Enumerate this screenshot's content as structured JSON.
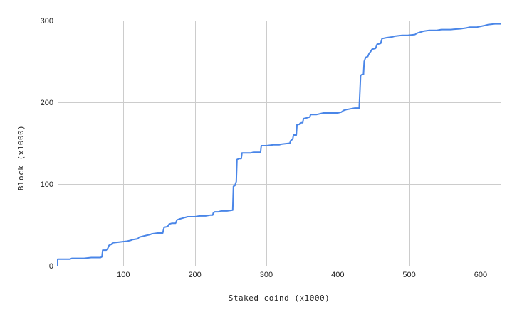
{
  "chart_data": {
    "type": "line",
    "title": "",
    "xlabel": "Staked coind (x1000)",
    "ylabel": "Block (x1000)",
    "xlim": [
      8,
      628
    ],
    "ylim": [
      0,
      300
    ],
    "x_ticks": [
      100,
      200,
      300,
      400,
      500,
      600
    ],
    "x_tick_labels": [
      "100",
      "200",
      "300",
      "400",
      "500",
      "600"
    ],
    "y_ticks": [
      0,
      100,
      200,
      300
    ],
    "y_tick_labels": [
      "0",
      "100",
      "200",
      "300"
    ],
    "grid": true,
    "line_color": "#4a86e8",
    "series": [
      {
        "values": [
          [
            8,
            0
          ],
          [
            8,
            8
          ],
          [
            25,
            8
          ],
          [
            28,
            9
          ],
          [
            45,
            9
          ],
          [
            55,
            10
          ],
          [
            68,
            10
          ],
          [
            70,
            11
          ],
          [
            71,
            19
          ],
          [
            76,
            19
          ],
          [
            78,
            21
          ],
          [
            80,
            25
          ],
          [
            83,
            26
          ],
          [
            85,
            28
          ],
          [
            95,
            29
          ],
          [
            105,
            30
          ],
          [
            110,
            31
          ],
          [
            113,
            32
          ],
          [
            120,
            33
          ],
          [
            122,
            35
          ],
          [
            127,
            36
          ],
          [
            132,
            37
          ],
          [
            137,
            38
          ],
          [
            140,
            39
          ],
          [
            148,
            40
          ],
          [
            155,
            40
          ],
          [
            157,
            47
          ],
          [
            162,
            48
          ],
          [
            164,
            51
          ],
          [
            168,
            52
          ],
          [
            173,
            52
          ],
          [
            175,
            56
          ],
          [
            178,
            57
          ],
          [
            182,
            58
          ],
          [
            186,
            59
          ],
          [
            190,
            60
          ],
          [
            200,
            60
          ],
          [
            207,
            61
          ],
          [
            215,
            61
          ],
          [
            222,
            62
          ],
          [
            225,
            62
          ],
          [
            226,
            65
          ],
          [
            228,
            66
          ],
          [
            233,
            66
          ],
          [
            237,
            67
          ],
          [
            245,
            67
          ],
          [
            253,
            68
          ],
          [
            254,
            97
          ],
          [
            256,
            98
          ],
          [
            258,
            103
          ],
          [
            259,
            130
          ],
          [
            262,
            131
          ],
          [
            265,
            131
          ],
          [
            266,
            138
          ],
          [
            278,
            138
          ],
          [
            282,
            139
          ],
          [
            292,
            139
          ],
          [
            293,
            147
          ],
          [
            300,
            147
          ],
          [
            310,
            148
          ],
          [
            318,
            148
          ],
          [
            322,
            149
          ],
          [
            333,
            150
          ],
          [
            334,
            153
          ],
          [
            337,
            155
          ],
          [
            338,
            160
          ],
          [
            342,
            160
          ],
          [
            343,
            173
          ],
          [
            346,
            173
          ],
          [
            348,
            175
          ],
          [
            351,
            175
          ],
          [
            352,
            180
          ],
          [
            357,
            181
          ],
          [
            361,
            182
          ],
          [
            362,
            185
          ],
          [
            370,
            185
          ],
          [
            380,
            187
          ],
          [
            400,
            187
          ],
          [
            405,
            188
          ],
          [
            408,
            190
          ],
          [
            412,
            191
          ],
          [
            418,
            192
          ],
          [
            424,
            193
          ],
          [
            430,
            193
          ],
          [
            432,
            233
          ],
          [
            434,
            234
          ],
          [
            436,
            234
          ],
          [
            437,
            250
          ],
          [
            439,
            255
          ],
          [
            442,
            256
          ],
          [
            444,
            260
          ],
          [
            446,
            262
          ],
          [
            448,
            265
          ],
          [
            453,
            266
          ],
          [
            455,
            271
          ],
          [
            460,
            272
          ],
          [
            462,
            278
          ],
          [
            468,
            279
          ],
          [
            476,
            280
          ],
          [
            480,
            281
          ],
          [
            490,
            282
          ],
          [
            498,
            282
          ],
          [
            508,
            283
          ],
          [
            512,
            285
          ],
          [
            520,
            287
          ],
          [
            528,
            288
          ],
          [
            538,
            288
          ],
          [
            545,
            289
          ],
          [
            558,
            289
          ],
          [
            572,
            290
          ],
          [
            580,
            291
          ],
          [
            585,
            292
          ],
          [
            595,
            292
          ],
          [
            600,
            293
          ],
          [
            606,
            294
          ],
          [
            610,
            295
          ],
          [
            620,
            296
          ],
          [
            628,
            296
          ]
        ]
      }
    ]
  }
}
